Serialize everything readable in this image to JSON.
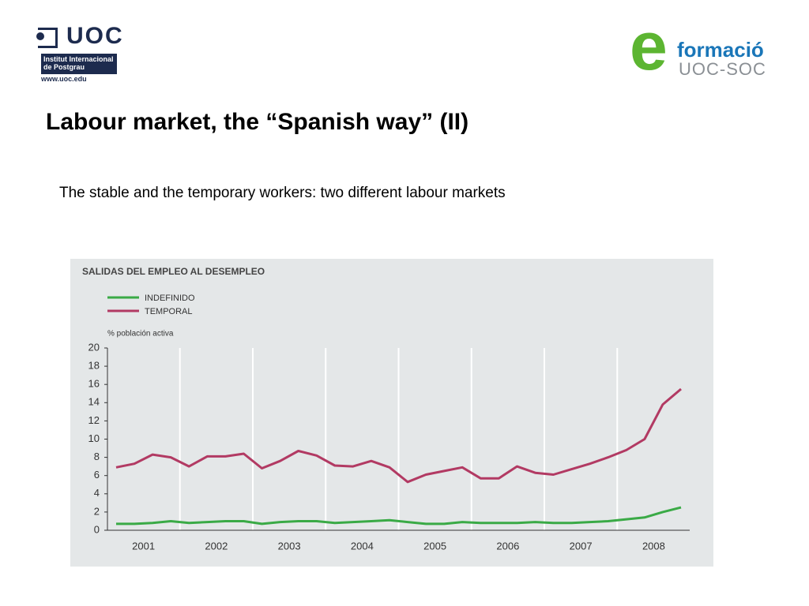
{
  "header": {
    "left_logo": {
      "name": "UOC",
      "institute": "Institut Internacional de Postgrau",
      "url": "www.uoc.edu"
    },
    "right_logo": {
      "mark": "e",
      "name": "formació",
      "subname": "UOC-SOC"
    }
  },
  "title": "Labour market, the “Spanish way” (II)",
  "subtitle": "The stable and the temporary workers: two different labour markets",
  "chart_data": {
    "type": "line",
    "title": "SALIDAS DEL EMPLEO AL DESEMPLEO",
    "y_label": "% población activa",
    "categories": [
      null,
      "2001",
      null,
      null,
      null,
      "2002",
      null,
      null,
      null,
      "2003",
      null,
      null,
      null,
      "2004",
      null,
      null,
      null,
      "2005",
      null,
      null,
      null,
      "2006",
      null,
      null,
      null,
      "2007",
      null,
      null,
      null,
      "2008",
      null,
      null
    ],
    "series": [
      {
        "name": "INDEFINIDO",
        "color": "#3aaa46",
        "values": [
          0.7,
          0.7,
          0.8,
          1.0,
          0.8,
          0.9,
          1.0,
          1.0,
          0.7,
          0.9,
          1.0,
          1.0,
          0.8,
          0.9,
          1.0,
          1.1,
          0.9,
          0.7,
          0.7,
          0.9,
          0.8,
          0.8,
          0.8,
          0.9,
          0.8,
          0.8,
          0.9,
          1.0,
          1.2,
          1.4,
          2.0,
          2.5
        ]
      },
      {
        "name": "TEMPORAL",
        "color": "#b23a63",
        "values": [
          6.9,
          7.3,
          8.3,
          8.0,
          7.0,
          8.1,
          8.1,
          8.4,
          6.8,
          7.6,
          8.7,
          8.2,
          7.1,
          7.0,
          7.6,
          6.9,
          5.3,
          6.1,
          6.5,
          6.9,
          5.7,
          5.7,
          7.0,
          6.3,
          6.1,
          6.7,
          7.3,
          8.0,
          8.8,
          10.0,
          13.8,
          15.5
        ]
      }
    ],
    "ylim": [
      0,
      20
    ],
    "yticks": [
      0,
      2,
      4,
      6,
      8,
      10,
      12,
      14,
      16,
      18,
      20
    ],
    "legend": "top-left"
  }
}
